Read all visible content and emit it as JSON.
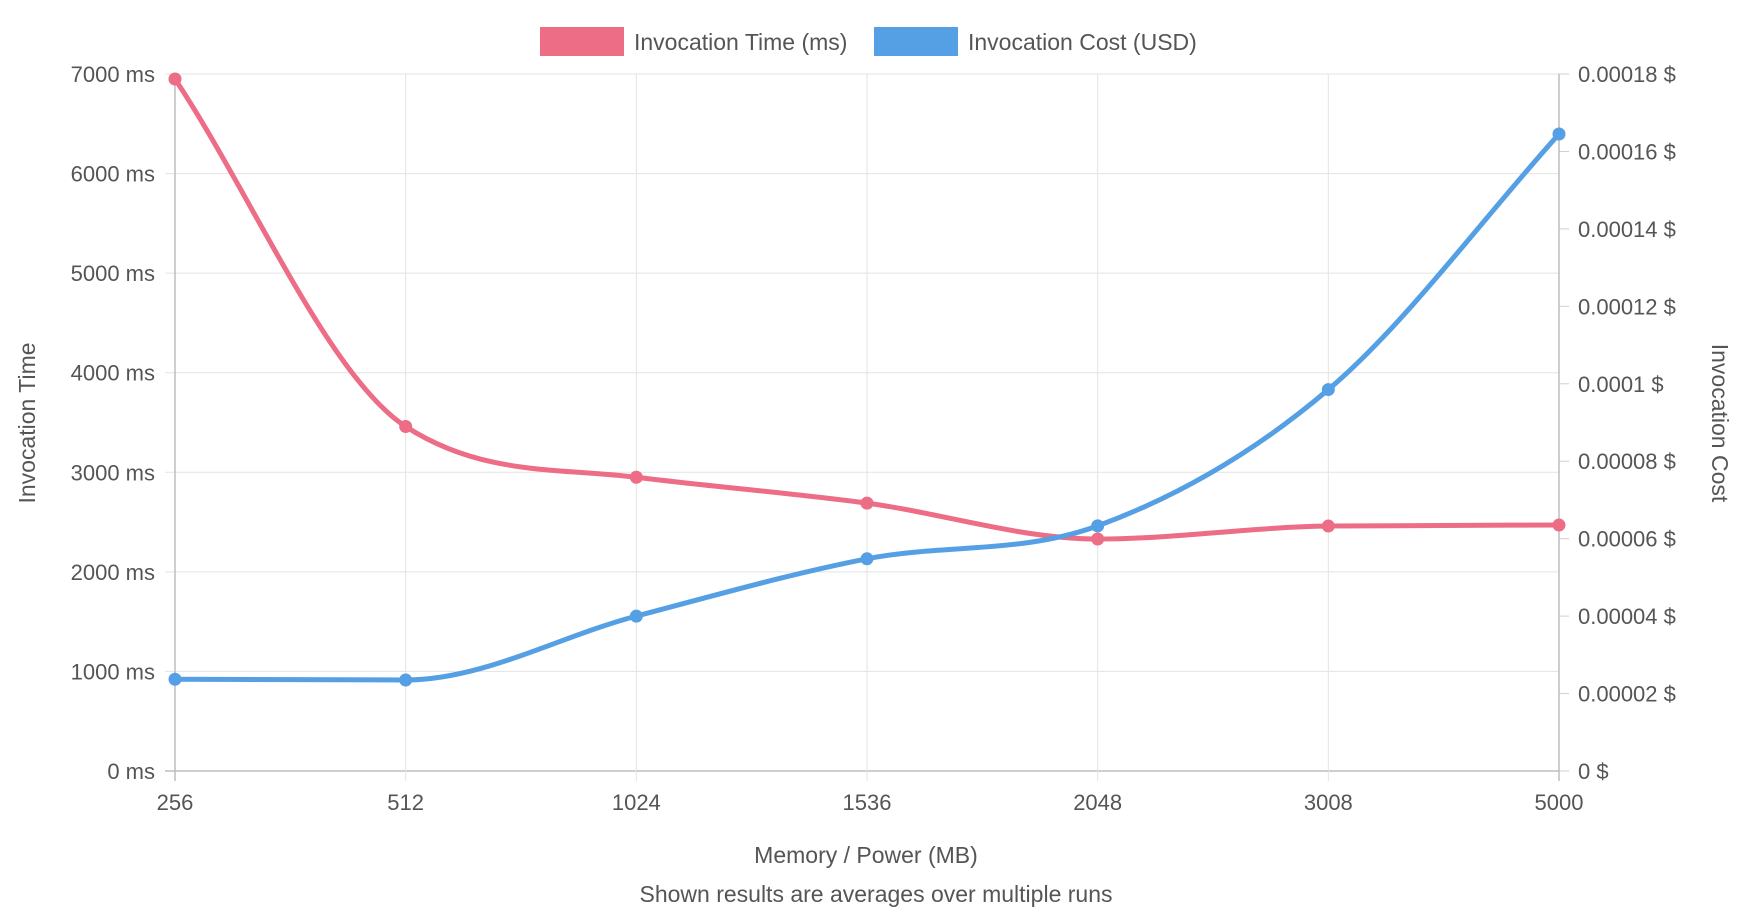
{
  "chart_data": {
    "type": "line",
    "categories": [
      "256",
      "512",
      "1024",
      "1536",
      "2048",
      "3008",
      "5000"
    ],
    "series": [
      {
        "name": "Invocation Time (ms)",
        "axis": "left",
        "color": "#ec6d85",
        "values": [
          6950,
          3460,
          2950,
          2690,
          2330,
          2460,
          2470
        ]
      },
      {
        "name": "Invocation Cost (USD)",
        "axis": "right",
        "color": "#55a0e4",
        "values": [
          2.37e-05,
          2.35e-05,
          4e-05,
          5.48e-05,
          6.33e-05,
          9.85e-05,
          0.0001645
        ]
      }
    ],
    "xlabel": "Memory / Power (MB)",
    "subtitle": "Shown results are averages over multiple runs",
    "ylabel_left": "Invocation Time",
    "ylabel_right": "Invocation Cost",
    "ylim_left": [
      0,
      7000
    ],
    "ylim_right": [
      0,
      0.00018
    ],
    "yticks_left": [
      "0 ms",
      "1000 ms",
      "2000 ms",
      "3000 ms",
      "4000 ms",
      "5000 ms",
      "6000 ms",
      "7000 ms"
    ],
    "yticks_right": [
      "0 $",
      "0.00002 $",
      "0.00004 $",
      "0.00006 $",
      "0.00008 $",
      "0.0001 $",
      "0.00012 $",
      "0.00014 $",
      "0.00016 $",
      "0.00018 $"
    ],
    "grid": true,
    "legend_position": "top-center"
  }
}
